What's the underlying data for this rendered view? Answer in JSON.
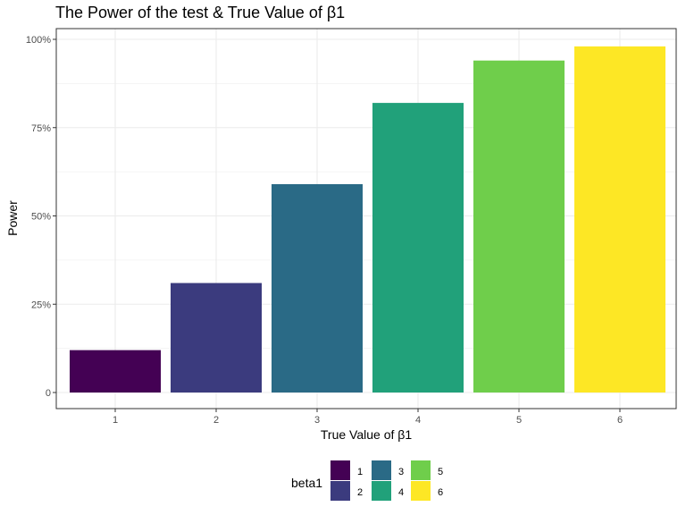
{
  "chart_data": {
    "type": "bar",
    "title": "The Power of the test & True Value of β1",
    "xlabel": "True Value of β1",
    "ylabel": "Power",
    "categories": [
      "1",
      "2",
      "3",
      "4",
      "5",
      "6"
    ],
    "values": [
      0.12,
      0.31,
      0.59,
      0.82,
      0.94,
      0.98
    ],
    "ylim": [
      0,
      1
    ],
    "y_ticks": [
      0,
      0.25,
      0.5,
      0.75,
      1.0
    ],
    "y_tick_labels": [
      "0",
      "25%",
      "50%",
      "75%",
      "100%"
    ],
    "grid": true,
    "legend": {
      "title": "beta1",
      "position": "bottom",
      "entries": [
        "1",
        "2",
        "3",
        "4",
        "5",
        "6"
      ]
    },
    "colors": [
      "#440154",
      "#443A83",
      "#31688E",
      "#21908C",
      "#35B779",
      "#8FD744",
      "#FDE725"
    ],
    "bar_colors": [
      "#440154",
      "#3B3B7E",
      "#2A6A86",
      "#21A17A",
      "#6FCE4B",
      "#FDE725"
    ]
  }
}
